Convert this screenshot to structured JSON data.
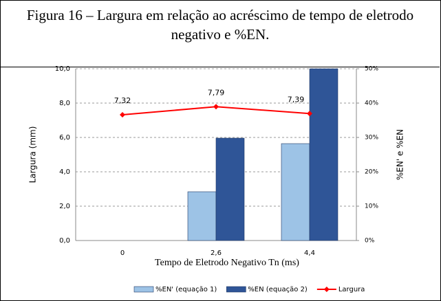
{
  "chart_data": {
    "type": "bar",
    "title": "Figura 16 – Largura em relação ao acréscimo de tempo de eletrodo negativo e %EN.",
    "x_label": "Tempo de Eletrodo Negativo Tn (ms)",
    "y_label": "Largura (mm)",
    "y2_label": "%EN' e %EN",
    "categories": [
      "0",
      "2,6",
      "4,4"
    ],
    "series": [
      {
        "name": "%EN' (equação 1)",
        "type": "bar",
        "axis": "y2",
        "color": "#9dc3e6",
        "values": [
          null,
          14.2,
          28.2
        ]
      },
      {
        "name": "%EN (equação 2)",
        "type": "bar",
        "axis": "y2",
        "color": "#2f5597",
        "values": [
          null,
          29.8,
          50
        ]
      },
      {
        "name": "Largura",
        "type": "line",
        "axis": "y",
        "color": "#ff0000",
        "values": [
          7.32,
          7.79,
          7.39
        ],
        "value_labels": [
          "7,32",
          "7,79",
          "7,39"
        ]
      }
    ],
    "ylim": [
      0,
      10
    ],
    "yticks": [
      {
        "value": 0,
        "label": "0,0"
      },
      {
        "value": 2,
        "label": "2,0"
      },
      {
        "value": 4,
        "label": "4,0"
      },
      {
        "value": 6,
        "label": "6,0"
      },
      {
        "value": 8,
        "label": "8,0"
      },
      {
        "value": 10,
        "label": "10,0"
      }
    ],
    "y2lim": [
      0,
      50
    ],
    "y2ticks": [
      {
        "value": 0,
        "label": "0%"
      },
      {
        "value": 10,
        "label": "10%"
      },
      {
        "value": 20,
        "label": "20%"
      },
      {
        "value": 30,
        "label": "30%"
      },
      {
        "value": 40,
        "label": "40%"
      },
      {
        "value": 50,
        "label": "50%"
      }
    ],
    "grid": true,
    "legend": "bottom"
  }
}
